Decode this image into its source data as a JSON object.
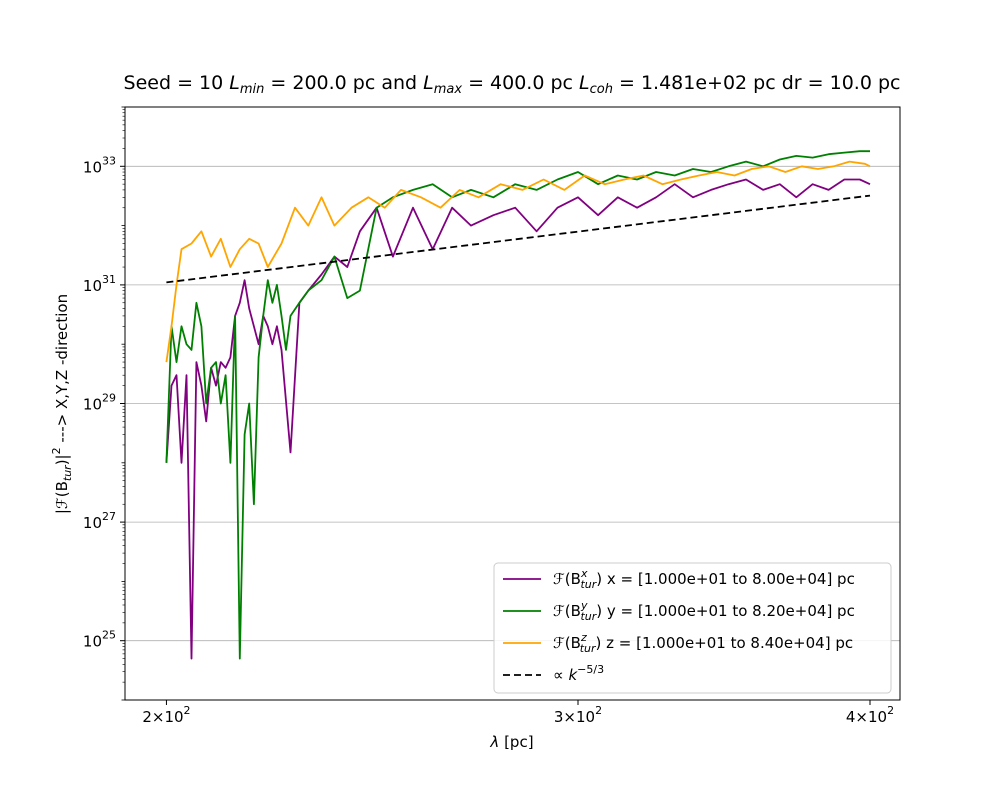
{
  "chart_data": {
    "type": "line",
    "title": {
      "p1": "Seed = 10 ",
      "p2": "L",
      "p3": "min",
      "p4": " = 200.0 pc and ",
      "p5": "L",
      "p6": "max",
      "p7": " = 400.0 pc ",
      "p8": "L",
      "p9": "coh",
      "p10": " = 1.481e+02 pc dr = 10.0 pc"
    },
    "xlabel": {
      "sym": "λ",
      "rest": " [pc]"
    },
    "ylabel": {
      "a": "|",
      "b": "ℱ",
      "c": "(B",
      "d": "tur",
      "e": ")|",
      "f": "2",
      "g": " ---> X,Y,Z -direction"
    },
    "x_scale": "log",
    "y_scale": "log",
    "xlim": [
      192,
      412
    ],
    "ylim": [
      1e+24,
      1e+34
    ],
    "grid": "y-major",
    "legend_position": "lower-right",
    "x_ticks": [
      {
        "value": 200,
        "base": "2×10",
        "exp": "2"
      },
      {
        "value": 300,
        "base": "3×10",
        "exp": "2"
      },
      {
        "value": 400,
        "base": "4×10",
        "exp": "2"
      }
    ],
    "y_ticks": [
      {
        "value": 1e+25,
        "base": "10",
        "exp": "25"
      },
      {
        "value": 1e+27,
        "base": "10",
        "exp": "27"
      },
      {
        "value": 1e+29,
        "base": "10",
        "exp": "29"
      },
      {
        "value": 1e+31,
        "base": "10",
        "exp": "31"
      },
      {
        "value": 1e+33,
        "base": "10",
        "exp": "33"
      }
    ],
    "series": [
      {
        "color": "#800080",
        "legend": {
          "f": "ℱ",
          "b": "(B",
          "sup": "x",
          "sub": "tur",
          "rest": ") x = [1.000e+01 to 8.00e+04] pc"
        },
        "x": [
          200,
          201,
          202,
          203,
          204,
          205,
          206,
          207,
          208,
          209,
          210,
          211,
          212,
          213,
          214,
          215,
          216,
          217,
          218,
          219,
          220,
          221,
          222,
          223,
          224,
          226,
          228,
          230,
          233,
          236,
          239,
          242,
          246,
          250,
          255,
          260,
          265,
          270,
          276,
          282,
          288,
          294,
          300,
          306,
          312,
          318,
          324,
          330,
          336,
          342,
          348,
          354,
          360,
          366,
          372,
          378,
          384,
          390,
          396,
          400
        ],
        "y": [
          1e+28,
          2e+29,
          3e+29,
          1e+28,
          3e+29,
          5e+24,
          5e+29,
          2e+29,
          5e+28,
          4e+29,
          2e+29,
          5e+29,
          4e+29,
          6e+29,
          3e+30,
          5e+30,
          1.2e+31,
          4e+30,
          2e+30,
          1e+30,
          3e+30,
          2e+30,
          1e+30,
          2e+30,
          8e+29,
          1.5e+28,
          5e+30,
          8e+30,
          1.5e+31,
          3e+31,
          2e+31,
          8e+31,
          2e+32,
          3e+31,
          2e+32,
          4e+31,
          2e+32,
          1e+32,
          1.5e+32,
          2e+32,
          8e+31,
          2e+32,
          3e+32,
          1.5e+32,
          3e+32,
          2e+32,
          3e+32,
          5e+32,
          3e+32,
          4e+32,
          5e+32,
          6e+32,
          4e+32,
          5e+32,
          3e+32,
          5e+32,
          4e+32,
          6e+32,
          6e+32,
          5e+32
        ]
      },
      {
        "color": "#008000",
        "legend": {
          "f": "ℱ",
          "b": "(B",
          "sup": "y",
          "sub": "tur",
          "rest": ") y = [1.000e+01 to 8.20e+04] pc"
        },
        "x": [
          200,
          201,
          202,
          203,
          204,
          205,
          206,
          207,
          208,
          209,
          210,
          211,
          212,
          213,
          214,
          215,
          216,
          217,
          218,
          219,
          220,
          221,
          222,
          223,
          224,
          225,
          226,
          228,
          230,
          233,
          236,
          239,
          242,
          246,
          250,
          255,
          260,
          265,
          270,
          276,
          282,
          288,
          294,
          300,
          306,
          312,
          318,
          324,
          330,
          336,
          342,
          348,
          354,
          360,
          366,
          372,
          378,
          384,
          390,
          396,
          400
        ],
        "y": [
          1e+28,
          2e+30,
          5e+29,
          2e+30,
          1e+30,
          8e+29,
          5e+30,
          2e+30,
          1e+29,
          4e+29,
          5e+29,
          1e+29,
          3e+29,
          1e+28,
          3e+30,
          5e+24,
          3e+28,
          1e+29,
          2e+27,
          6e+29,
          3e+30,
          1.2e+31,
          5e+30,
          1e+31,
          3e+30,
          8e+29,
          3e+30,
          5e+30,
          8e+30,
          1.2e+31,
          3e+31,
          6e+30,
          8e+30,
          2e+32,
          3e+32,
          4e+32,
          5e+32,
          3e+32,
          4e+32,
          3e+32,
          5e+32,
          4e+32,
          6e+32,
          8e+32,
          5e+32,
          7e+32,
          6e+32,
          8e+32,
          7e+32,
          9e+32,
          8e+32,
          1e+33,
          1.2e+33,
          1e+33,
          1.3e+33,
          1.5e+33,
          1.4e+33,
          1.6e+33,
          1.7e+33,
          1.8e+33,
          1.8e+33
        ]
      },
      {
        "color": "#FFA500",
        "legend": {
          "f": "ℱ",
          "b": "(B",
          "sup": "z",
          "sub": "tur",
          "rest": ") z = [1.000e+01 to 8.40e+04] pc"
        },
        "x": [
          200,
          201,
          202,
          203,
          205,
          207,
          209,
          211,
          213,
          215,
          217,
          219,
          221,
          224,
          227,
          230,
          233,
          236,
          240,
          244,
          248,
          252,
          257,
          262,
          267,
          272,
          278,
          284,
          290,
          296,
          302,
          308,
          314,
          320,
          326,
          332,
          338,
          344,
          350,
          356,
          362,
          368,
          374,
          380,
          386,
          392,
          398,
          400
        ],
        "y": [
          5e+29,
          2e+30,
          1e+31,
          4e+31,
          5e+31,
          8e+31,
          3e+31,
          6e+31,
          2e+31,
          4e+31,
          6e+31,
          5e+31,
          2e+31,
          5e+31,
          2e+32,
          1e+32,
          3e+32,
          1e+32,
          2e+32,
          3e+32,
          2e+32,
          4e+32,
          3e+32,
          2e+32,
          4e+32,
          3e+32,
          5e+32,
          4e+32,
          6e+32,
          4e+32,
          7e+32,
          5e+32,
          6e+32,
          7e+32,
          5e+32,
          6e+32,
          7e+32,
          8e+32,
          7e+32,
          9e+32,
          1e+33,
          8e+32,
          1e+33,
          9e+32,
          1e+33,
          1.2e+33,
          1.1e+33,
          1e+33
        ]
      },
      {
        "color": "#000000",
        "dashed": true,
        "legend": {
          "prop": "∝ ",
          "k": "k",
          "sup": "−5/3"
        },
        "x": [
          200,
          400
        ],
        "y": [
          1.1e+31,
          3.2e+32
        ]
      }
    ]
  }
}
